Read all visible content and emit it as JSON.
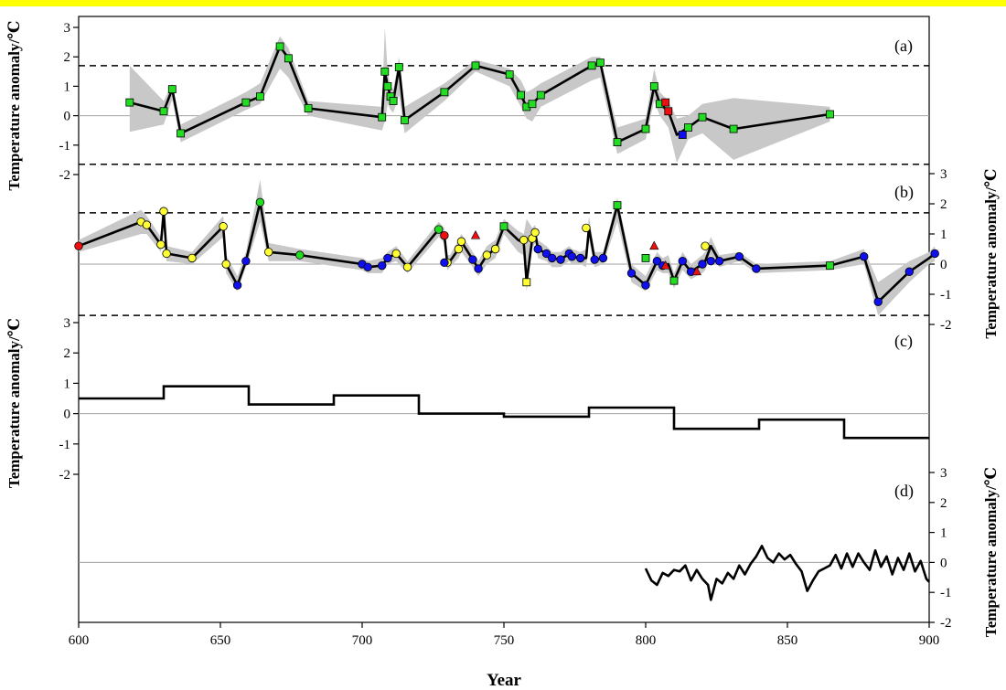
{
  "chart_data": {
    "type": "line",
    "xlabel": "Year",
    "xlim": [
      600,
      900
    ],
    "x_ticks": [
      600,
      650,
      700,
      750,
      800,
      850,
      900
    ],
    "panel_ylabel": "Temperature anomaly/℃",
    "colors": {
      "green": "#22dd22",
      "yellow": "#ffff33",
      "blue": "#1010ee",
      "red": "#ee1010",
      "band": "#c8c8c8",
      "line": "#000000"
    },
    "panels": [
      {
        "label": "(a)",
        "ylim": [
          -2,
          3
        ],
        "y_ticks": [
          "-2",
          "-1",
          "0",
          "1",
          "2",
          "3"
        ],
        "y_axis_side": "left",
        "thresholds": [
          1.7,
          -1.65
        ],
        "series": [
          {
            "type": "line-band",
            "x": [
              618,
              630,
              633,
              636,
              659,
              664,
              671,
              674,
              681,
              707,
              708,
              709,
              710,
              711,
              713,
              715,
              729,
              740,
              752,
              756,
              758,
              760,
              763,
              781,
              784,
              790,
              800,
              803,
              805,
              808,
              811,
              815,
              820,
              831,
              865
            ],
            "y": [
              0.45,
              0.15,
              0.9,
              -0.6,
              0.45,
              0.65,
              2.35,
              1.95,
              0.25,
              -0.05,
              1.5,
              1.0,
              0.65,
              0.5,
              1.65,
              -0.15,
              0.8,
              1.7,
              1.4,
              0.7,
              0.3,
              0.4,
              0.7,
              1.7,
              1.8,
              -0.9,
              -0.45,
              1.0,
              0.4,
              0.15,
              -0.65,
              -0.4,
              -0.05,
              -0.45,
              0.05
            ],
            "lower": [
              -0.55,
              -0.3,
              0.55,
              -0.9,
              0.2,
              0.4,
              1.6,
              1.3,
              0.0,
              -0.5,
              -0.2,
              0.4,
              0.2,
              0.1,
              0.7,
              -0.6,
              0.5,
              1.5,
              1.0,
              0.3,
              -0.1,
              -0.2,
              0.3,
              1.2,
              1.3,
              -1.3,
              -0.8,
              0.5,
              0.0,
              -0.4,
              -1.6,
              -0.8,
              -0.6,
              -1.5,
              -0.2
            ],
            "upper": [
              1.7,
              0.5,
              1.1,
              -0.3,
              0.8,
              1.1,
              2.7,
              2.3,
              0.5,
              0.3,
              3.0,
              1.5,
              1.0,
              0.9,
              2.0,
              0.3,
              1.1,
              1.9,
              1.6,
              1.2,
              0.8,
              0.9,
              1.1,
              2.0,
              2.0,
              -0.4,
              -0.1,
              1.6,
              0.8,
              0.5,
              -0.1,
              0.0,
              0.4,
              0.6,
              0.3
            ]
          },
          {
            "type": "markers",
            "shape": "square",
            "color": "green",
            "x": [
              618,
              630,
              633,
              636,
              659,
              664,
              671,
              674,
              681,
              707,
              708,
              709,
              710,
              711,
              713,
              715,
              729,
              740,
              752,
              756,
              758,
              760,
              763,
              781,
              784,
              790,
              800,
              803,
              805,
              815,
              820,
              831,
              865
            ],
            "y": [
              0.45,
              0.15,
              0.9,
              -0.6,
              0.45,
              0.65,
              2.35,
              1.95,
              0.25,
              -0.05,
              1.5,
              1.0,
              0.65,
              0.5,
              1.65,
              -0.15,
              0.8,
              1.7,
              1.4,
              0.7,
              0.3,
              0.4,
              0.7,
              1.7,
              1.8,
              -0.9,
              -0.45,
              1.0,
              0.4,
              -0.4,
              -0.05,
              -0.45,
              0.05
            ]
          },
          {
            "type": "markers",
            "shape": "square",
            "color": "red",
            "x": [
              807,
              808
            ],
            "y": [
              0.45,
              0.15
            ]
          },
          {
            "type": "markers",
            "shape": "square",
            "color": "blue",
            "x": [
              813
            ],
            "y": [
              -0.65
            ]
          }
        ]
      },
      {
        "label": "(b)",
        "ylim": [
          -2,
          3
        ],
        "y_ticks": [
          "-2",
          "-1",
          "0",
          "1",
          "2",
          "3"
        ],
        "y_axis_side": "right",
        "thresholds": [
          1.7,
          -1.7
        ],
        "series": [
          {
            "type": "line-band",
            "x": [
              600,
              622,
              624,
              629,
              630,
              631,
              640,
              651,
              652,
              656,
              659,
              664,
              667,
              678,
              700,
              702,
              707,
              709,
              712,
              716,
              727,
              729,
              730,
              731,
              734,
              735,
              739,
              741,
              744,
              747,
              750,
              755,
              757,
              758,
              760,
              761,
              762,
              765,
              767,
              770,
              773,
              774,
              777,
              779,
              780,
              782,
              785,
              790,
              795,
              800,
              804,
              806,
              808,
              810,
              813,
              816,
              820,
              821,
              823,
              826,
              833,
              839,
              865,
              877,
              882,
              893,
              900,
              902
            ],
            "y": [
              0.6,
              1.4,
              1.3,
              0.65,
              1.75,
              0.35,
              0.2,
              1.25,
              0.0,
              -0.7,
              0.1,
              2.05,
              0.4,
              0.3,
              0.0,
              -0.1,
              -0.05,
              0.2,
              0.35,
              -0.1,
              1.15,
              0.95,
              0.05,
              0.1,
              0.5,
              0.75,
              0.15,
              -0.15,
              0.3,
              0.5,
              1.25,
              0.8,
              0.7,
              -0.6,
              0.85,
              1.05,
              0.5,
              0.35,
              0.2,
              0.15,
              0.35,
              0.25,
              0.2,
              0.2,
              1.2,
              0.15,
              0.2,
              1.95,
              -0.3,
              -0.7,
              0.1,
              -0.05,
              0.0,
              -0.55,
              0.1,
              -0.25,
              0.0,
              0.1,
              0.6,
              0.1,
              0.25,
              -0.15,
              -0.05,
              0.25,
              -1.25,
              -0.25,
              0.2,
              0.35
            ],
            "lower": [
              0.4,
              1.0,
              1.0,
              0.4,
              1.3,
              0.1,
              0.0,
              0.9,
              -0.3,
              -0.9,
              -0.1,
              1.4,
              0.1,
              0.1,
              -0.2,
              -0.3,
              -0.3,
              0.0,
              0.1,
              -0.3,
              0.9,
              0.7,
              -0.2,
              -0.1,
              0.2,
              0.4,
              -0.1,
              -0.4,
              0.0,
              0.2,
              1.0,
              0.4,
              0.3,
              -0.9,
              0.5,
              0.7,
              0.2,
              0.1,
              -0.1,
              -0.1,
              0.1,
              0.0,
              0.0,
              -0.1,
              0.8,
              -0.1,
              0.0,
              1.4,
              -0.6,
              -0.9,
              -0.2,
              -0.3,
              -0.3,
              -0.8,
              -0.2,
              -0.5,
              -0.3,
              -0.2,
              0.3,
              -0.1,
              0.1,
              -0.3,
              -0.2,
              0.0,
              -1.7,
              -0.6,
              0.0,
              0.1
            ],
            "upper": [
              0.8,
              1.8,
              1.6,
              0.9,
              2.0,
              0.6,
              0.4,
              1.6,
              0.3,
              -0.4,
              0.4,
              2.8,
              0.7,
              0.5,
              0.2,
              0.1,
              0.2,
              0.4,
              0.6,
              0.1,
              1.4,
              1.2,
              0.3,
              0.3,
              0.8,
              1.0,
              0.4,
              0.1,
              0.6,
              0.8,
              1.5,
              1.1,
              1.0,
              1.5,
              1.2,
              1.3,
              0.8,
              0.6,
              0.4,
              0.4,
              0.6,
              0.5,
              0.4,
              0.5,
              1.6,
              0.4,
              0.4,
              2.2,
              0.0,
              -0.4,
              0.4,
              0.2,
              0.3,
              -0.3,
              0.4,
              0.0,
              0.3,
              0.4,
              0.9,
              0.3,
              0.4,
              0.0,
              0.1,
              0.5,
              -0.6,
              0.1,
              0.4,
              0.6
            ]
          },
          {
            "type": "markers",
            "shape": "circle",
            "color": "red",
            "x": [
              600,
              729
            ],
            "y": [
              0.6,
              0.95
            ]
          },
          {
            "type": "markers",
            "shape": "circle",
            "color": "yellow",
            "x": [
              622,
              624,
              629,
              630,
              631,
              640,
              651,
              652,
              667,
              712,
              716,
              730,
              734,
              735,
              744,
              747,
              757,
              760,
              761,
              779,
              821
            ],
            "y": [
              1.4,
              1.3,
              0.65,
              1.75,
              0.35,
              0.2,
              1.25,
              0.0,
              0.4,
              0.35,
              -0.1,
              0.05,
              0.5,
              0.75,
              0.3,
              0.5,
              0.8,
              0.85,
              1.05,
              1.2,
              0.6
            ]
          },
          {
            "type": "markers",
            "shape": "circle",
            "color": "green",
            "x": [
              664,
              678,
              727
            ],
            "y": [
              2.05,
              0.3,
              1.15
            ]
          },
          {
            "type": "markers",
            "shape": "circle",
            "color": "blue",
            "x": [
              656,
              659,
              700,
              702,
              707,
              709,
              729,
              739,
              741,
              762,
              765,
              767,
              770,
              773,
              774,
              777,
              782,
              785,
              795,
              800,
              804,
              806,
              813,
              816,
              820,
              823,
              826,
              833,
              839,
              877,
              882,
              893,
              902
            ],
            "y": [
              -0.7,
              0.1,
              0.0,
              -0.1,
              -0.05,
              0.2,
              0.05,
              0.15,
              -0.15,
              0.5,
              0.35,
              0.2,
              0.15,
              0.35,
              0.25,
              0.2,
              0.15,
              0.2,
              -0.3,
              -0.7,
              0.1,
              -0.05,
              0.1,
              -0.25,
              0.0,
              0.1,
              0.1,
              0.25,
              -0.15,
              0.25,
              -1.25,
              -0.25,
              0.35
            ]
          },
          {
            "type": "markers",
            "shape": "square",
            "color": "green",
            "x": [
              750,
              790,
              800,
              810,
              865
            ],
            "y": [
              1.25,
              1.95,
              0.2,
              -0.55,
              -0.05
            ]
          },
          {
            "type": "markers",
            "shape": "square",
            "color": "yellow",
            "x": [
              758
            ],
            "y": [
              -0.6
            ]
          },
          {
            "type": "markers",
            "shape": "triangle",
            "color": "red",
            "x": [
              740,
              803,
              807,
              818
            ],
            "y": [
              0.95,
              0.6,
              -0.05,
              -0.25
            ]
          }
        ]
      },
      {
        "label": "(c)",
        "ylim": [
          -2,
          3
        ],
        "y_ticks": [
          "-2",
          "-1",
          "0",
          "1",
          "2",
          "3"
        ],
        "y_axis_side": "left",
        "series": [
          {
            "type": "step",
            "x_edges": [
              600,
              630,
              660,
              690,
              720,
              750,
              780,
              810,
              840,
              870,
              900
            ],
            "values": [
              0.5,
              0.9,
              0.3,
              0.6,
              0.0,
              -0.1,
              0.2,
              -0.5,
              -0.2,
              -0.8
            ]
          }
        ]
      },
      {
        "label": "(d)",
        "ylim": [
          -2,
          3
        ],
        "y_ticks": [
          "-2",
          "-1",
          "0",
          "1",
          "2",
          "3"
        ],
        "y_axis_side": "right",
        "series": [
          {
            "type": "line",
            "x": [
              800,
              802,
              804,
              806,
              808,
              810,
              812,
              814,
              816,
              818,
              820,
              822,
              823,
              825,
              827,
              829,
              831,
              833,
              835,
              837,
              839,
              841,
              843,
              845,
              847,
              849,
              851,
              853,
              855,
              857,
              859,
              861,
              863,
              865,
              867,
              869,
              871,
              873,
              875,
              877,
              879,
              881,
              883,
              885,
              887,
              889,
              891,
              893,
              895,
              897,
              899,
              900
            ],
            "y": [
              -0.2,
              -0.6,
              -0.75,
              -0.35,
              -0.45,
              -0.25,
              -0.3,
              -0.1,
              -0.6,
              -0.25,
              -0.55,
              -0.75,
              -1.25,
              -0.55,
              -0.7,
              -0.35,
              -0.55,
              -0.1,
              -0.4,
              -0.05,
              0.2,
              0.55,
              0.15,
              0.0,
              0.3,
              0.1,
              0.25,
              -0.05,
              -0.3,
              -0.95,
              -0.6,
              -0.3,
              -0.2,
              -0.1,
              0.25,
              -0.2,
              0.3,
              -0.15,
              0.3,
              0.0,
              -0.25,
              0.4,
              -0.15,
              0.2,
              -0.4,
              0.15,
              -0.25,
              0.3,
              -0.3,
              0.05,
              -0.55,
              -0.65
            ]
          }
        ]
      }
    ]
  }
}
